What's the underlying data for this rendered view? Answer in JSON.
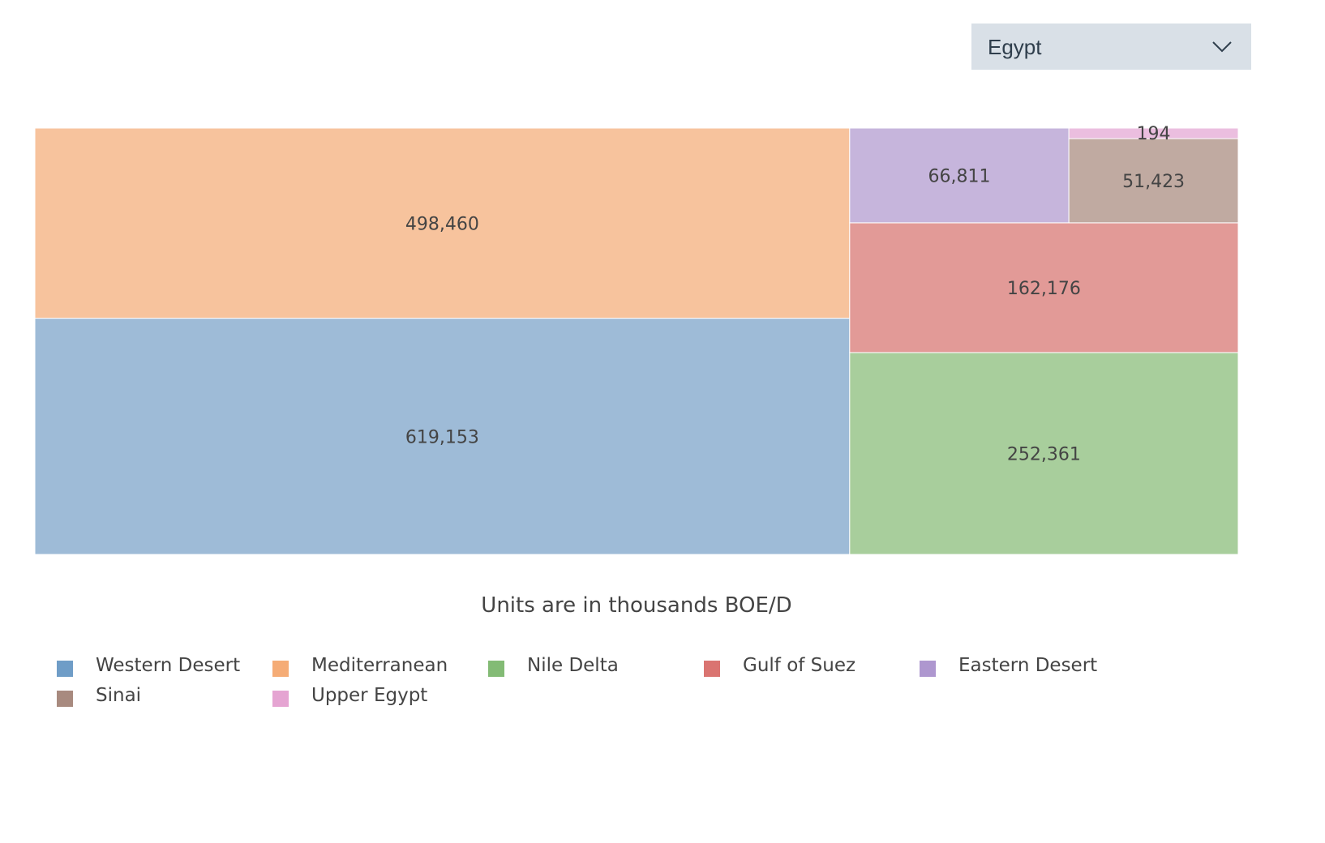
{
  "dropdown": {
    "selected": "Egypt"
  },
  "caption": "Units are in thousands BOE/D",
  "chart_data": {
    "type": "treemap",
    "title": "",
    "unit": "thousands BOE/D",
    "items": [
      {
        "name": "Western Desert",
        "value": 619153,
        "label": "619,153",
        "color": "#9ebbd7"
      },
      {
        "name": "Mediterranean",
        "value": 498460,
        "label": "498,460",
        "color": "#f7c39d"
      },
      {
        "name": "Nile Delta",
        "value": 252361,
        "label": "252,361",
        "color": "#a8ce9c"
      },
      {
        "name": "Gulf of Suez",
        "value": 162176,
        "label": "162,176",
        "color": "#e29a97"
      },
      {
        "name": "Eastern Desert",
        "value": 66811,
        "label": "66,811",
        "color": "#c6b5dc"
      },
      {
        "name": "Sinai",
        "value": 51423,
        "label": "51,423",
        "color": "#c0aaa1"
      },
      {
        "name": "Upper Egypt",
        "value": 194,
        "label": "194",
        "color": "#ebbedf"
      }
    ],
    "legend": [
      {
        "name": "Western Desert",
        "color": "#6f9dc7"
      },
      {
        "name": "Mediterranean",
        "color": "#f5ac76"
      },
      {
        "name": "Nile Delta",
        "color": "#83bb75"
      },
      {
        "name": "Gulf of Suez",
        "color": "#da7471"
      },
      {
        "name": "Eastern Desert",
        "color": "#ae97cf"
      },
      {
        "name": "Sinai",
        "color": "#a88a7f"
      },
      {
        "name": "Upper Egypt",
        "color": "#e5a4d2"
      }
    ]
  }
}
